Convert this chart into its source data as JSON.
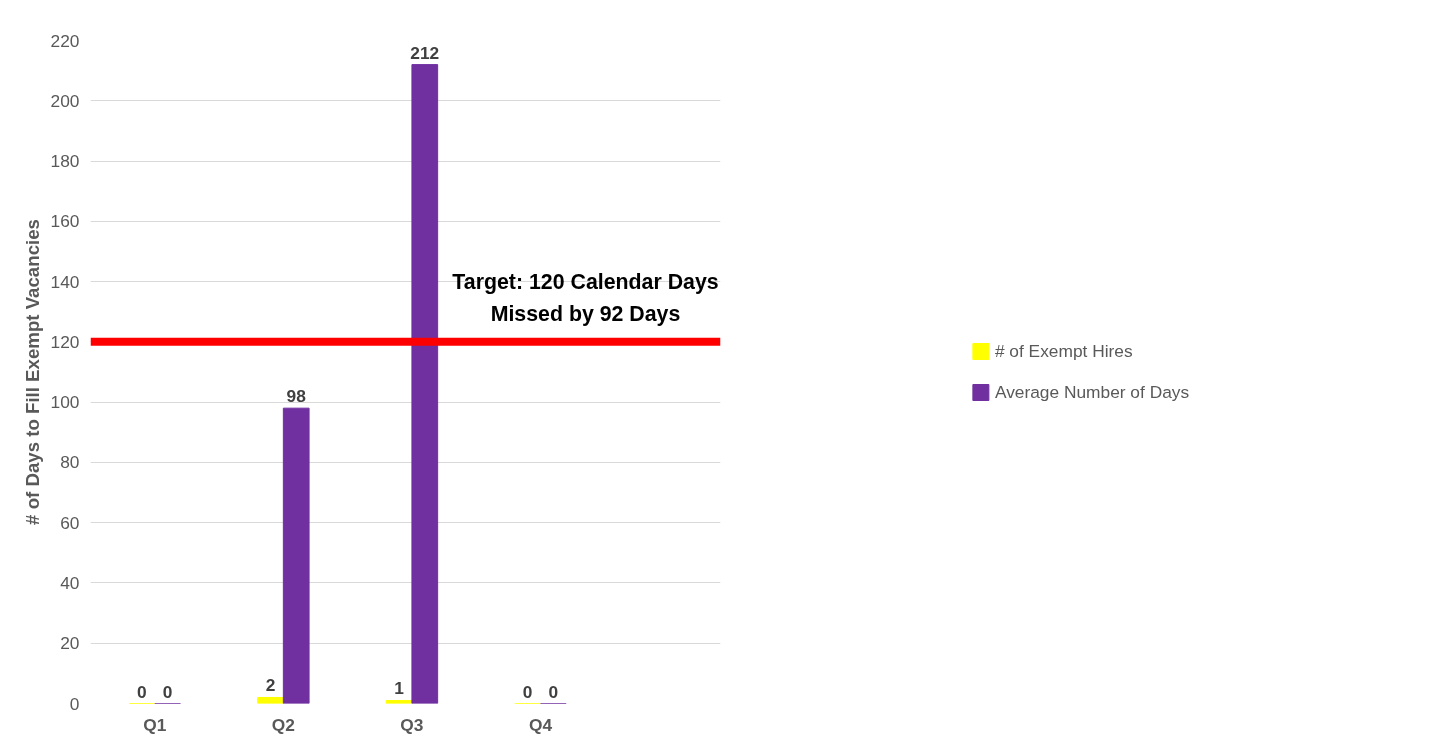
{
  "chart_data": {
    "type": "bar",
    "ylabel": "# of Days to Fill Exempt Vacancies",
    "categories": [
      "Q1",
      "Q2",
      "Q3",
      "Q4"
    ],
    "series": [
      {
        "name": "# of Exempt Hires",
        "color": "#ffff00",
        "values": [
          0,
          2,
          1,
          0
        ]
      },
      {
        "name": "Average Number of Days",
        "color": "#7030a0",
        "values": [
          0,
          98,
          212,
          0
        ]
      }
    ],
    "ylim": [
      0,
      220
    ],
    "yticks": [
      0,
      20,
      40,
      60,
      80,
      100,
      120,
      140,
      160,
      180,
      200,
      220
    ],
    "grid": "y",
    "legend": "right",
    "data_labels": true,
    "ref_lines": [
      {
        "axis": "y",
        "value": 120,
        "label": "Target: 120 Calendar Days",
        "color": "#ff0000"
      }
    ],
    "annotations": [
      "Missed by 92 Days"
    ]
  }
}
